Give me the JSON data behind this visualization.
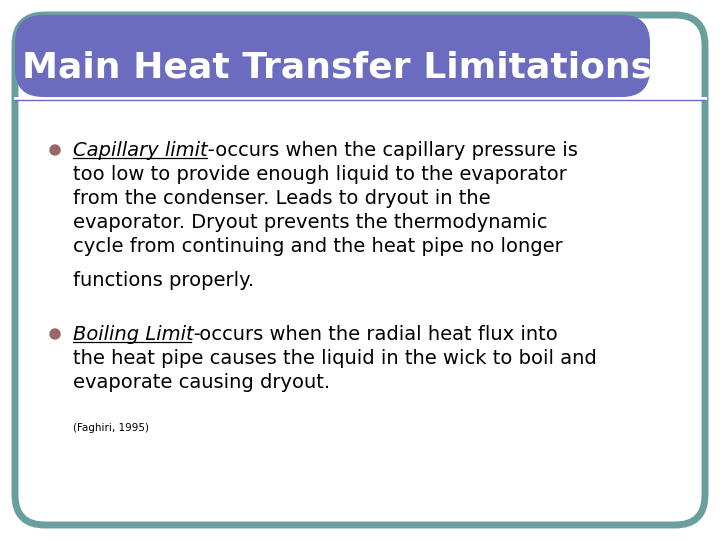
{
  "title": "Main Heat Transfer Limitations",
  "title_bg_color": "#6b6bbf",
  "title_text_color": "#ffffff",
  "title_fontsize": 26,
  "slide_bg_color": "#ffffff",
  "border_color": "#6a9fa0",
  "bullet_color": "#996666",
  "body_fontsize": 14,
  "citation_fontsize": 7.5,
  "citation": "(Faghiri, 1995)",
  "b1_label": "Capillary limit-",
  "b1_line1": " occurs when the capillary pressure is",
  "b1_lines": [
    "too low to provide enough liquid to the evaporator",
    "from the condenser. Leads to dryout in the",
    "evaporator. Dryout prevents the thermodynamic",
    "cycle from continuing and the heat pipe no longer",
    "functions properly."
  ],
  "b2_label": "Boiling Limit-",
  "b2_line1": " occurs when the radial heat flux into",
  "b2_lines": [
    "the heat pipe causes the liquid in the wick to boil and",
    "evaporate causing dryout."
  ]
}
